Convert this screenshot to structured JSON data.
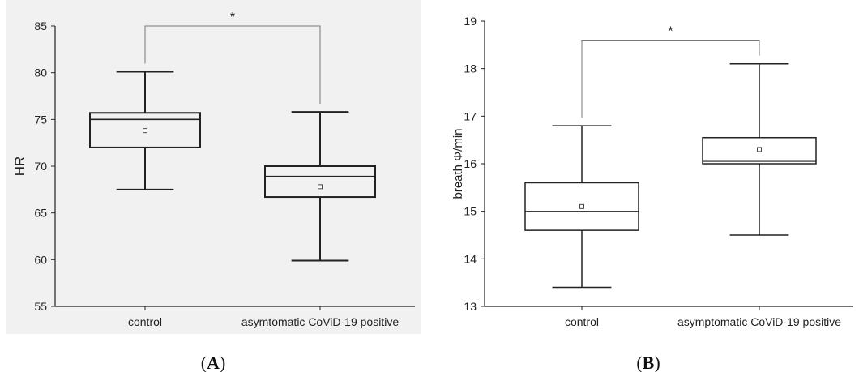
{
  "chart_data": [
    {
      "type": "box",
      "ylabel": "HR",
      "xlabel": "",
      "ylim": [
        55,
        85
      ],
      "yticks": [
        55,
        60,
        65,
        70,
        75,
        80,
        85
      ],
      "categories": [
        "control",
        "asymtomatic CoViD-19 positive"
      ],
      "boxes": [
        {
          "whisker_low": 67.5,
          "q1": 72,
          "median": 75,
          "q3": 75.7,
          "whisker_high": 80.1,
          "mean": 73.8
        },
        {
          "whisker_low": 59.9,
          "q1": 66.7,
          "median": 68.9,
          "q3": 70,
          "whisker_high": 75.8,
          "mean": 67.8
        }
      ],
      "significance": {
        "between": [
          0,
          1
        ],
        "y": 85,
        "label": "*"
      },
      "caption_letter": "A",
      "caption_open": "(",
      "caption_close": ")",
      "grid": false,
      "background": "#f1f1f1"
    },
    {
      "type": "box",
      "ylabel": "breath Φ/min",
      "xlabel": "",
      "ylim": [
        13,
        19
      ],
      "yticks": [
        13,
        14,
        15,
        16,
        17,
        18,
        19
      ],
      "categories": [
        "control",
        "asymptomatic CoViD-19 positive"
      ],
      "boxes": [
        {
          "whisker_low": 13.4,
          "q1": 14.6,
          "median": 15,
          "q3": 15.6,
          "whisker_high": 16.8,
          "mean": 15.1
        },
        {
          "whisker_low": 14.5,
          "q1": 16,
          "median": 16.05,
          "q3": 16.55,
          "whisker_high": 18.1,
          "mean": 16.3
        }
      ],
      "significance": {
        "between": [
          0,
          1
        ],
        "y": 18.6,
        "label": "*"
      },
      "caption_letter": "B",
      "caption_open": "(",
      "caption_close": ")",
      "grid": false,
      "background": "#ffffff"
    }
  ]
}
